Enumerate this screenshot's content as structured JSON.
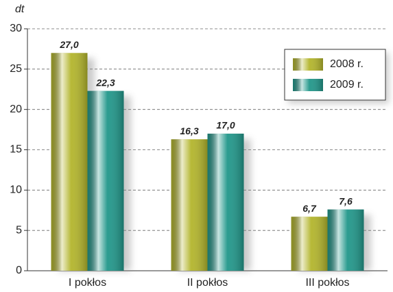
{
  "chart_data": {
    "type": "bar",
    "y_label": "dt",
    "categories": [
      "I pokłos",
      "II pokłos",
      "III pokłos"
    ],
    "series": [
      {
        "name": "2008 r.",
        "color": "#b3b52c",
        "values": [
          27.0,
          16.3,
          6.7
        ],
        "value_labels": [
          "27,0",
          "16,3",
          "6,7"
        ]
      },
      {
        "name": "2009 r.",
        "color": "#21978a",
        "values": [
          22.3,
          17.0,
          7.6
        ],
        "value_labels": [
          "22,3",
          "17,0",
          "7,6"
        ]
      }
    ],
    "ylim": [
      0,
      30
    ],
    "yticks": [
      0,
      5,
      10,
      15,
      20,
      25,
      30
    ],
    "grid": true,
    "legend": "top-right"
  }
}
